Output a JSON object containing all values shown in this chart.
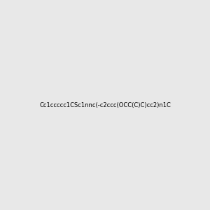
{
  "smiles": "Cc1ccccc1CSc1nnc(-c2ccc(OCC(C)C)cc2)n1C",
  "bg_color": "#e8e8e8",
  "fig_width": 3.0,
  "fig_height": 3.0,
  "dpi": 100,
  "atom_colors": {
    "N": "#0000ff",
    "S": "#cccc00",
    "O": "#ff0000",
    "C": "#000000"
  },
  "title": ""
}
